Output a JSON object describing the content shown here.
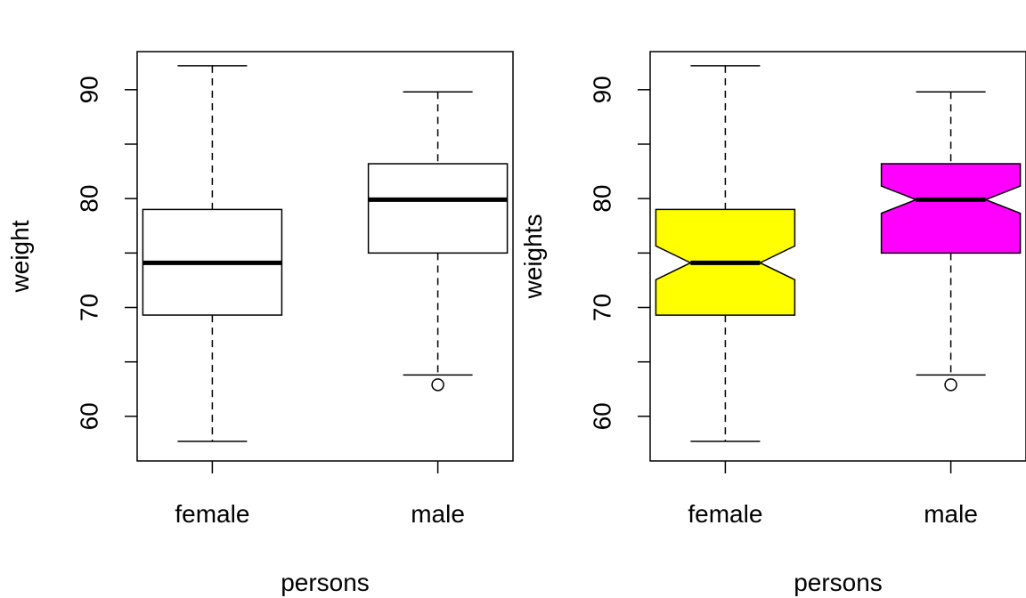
{
  "chart_data": [
    {
      "type": "boxplot",
      "xlabel": "persons",
      "ylabel": "weight",
      "categories": [
        "female",
        "male"
      ],
      "ylim": [
        55.9,
        93.5
      ],
      "yticks": [
        60,
        70,
        80,
        90
      ],
      "notch": false,
      "fill_colors": [
        "#ffffff",
        "#ffffff"
      ],
      "boxes": [
        {
          "category": "female",
          "whisker_low": 57.7,
          "q1": 69.3,
          "median": 74.1,
          "q3": 79.0,
          "whisker_high": 92.2,
          "outliers": []
        },
        {
          "category": "male",
          "whisker_low": 63.8,
          "q1": 75.0,
          "median": 79.9,
          "q3": 83.2,
          "whisker_high": 89.8,
          "outliers": [
            62.9
          ]
        }
      ]
    },
    {
      "type": "boxplot",
      "xlabel": "persons",
      "ylabel": "weights",
      "categories": [
        "female",
        "male"
      ],
      "ylim": [
        55.9,
        93.5
      ],
      "yticks": [
        60,
        70,
        80,
        90
      ],
      "notch": true,
      "notch_halfwidths": [
        1.55,
        1.25
      ],
      "fill_colors": [
        "#ffff00",
        "#ff00ff"
      ],
      "boxes": [
        {
          "category": "female",
          "whisker_low": 57.7,
          "q1": 69.3,
          "median": 74.1,
          "q3": 79.0,
          "whisker_high": 92.2,
          "outliers": []
        },
        {
          "category": "male",
          "whisker_low": 63.8,
          "q1": 75.0,
          "median": 79.9,
          "q3": 83.2,
          "whisker_high": 89.8,
          "outliers": [
            62.9
          ]
        }
      ]
    }
  ]
}
